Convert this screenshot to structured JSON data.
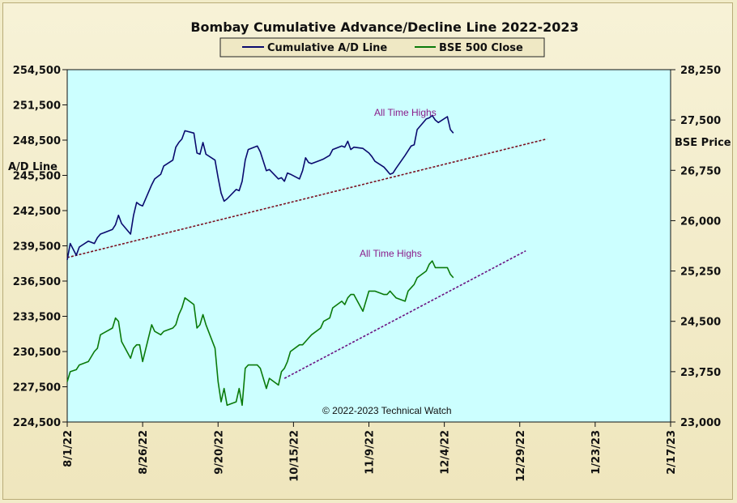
{
  "chart_data": {
    "type": "line",
    "title": "Bombay Cumulative Advance/Decline Line 2022-2023",
    "ylabel_left": "A/D Line",
    "ylabel_right": "BSE Price",
    "copyright": "© 2022-2023  Technical  Watch",
    "annotations": [
      "All Time Highs",
      "All Time Highs"
    ],
    "x_ticks": [
      "8/1/22",
      "8/26/22",
      "9/20/22",
      "10/15/22",
      "11/9/22",
      "12/4/22",
      "12/29/22",
      "1/23/23",
      "2/17/23"
    ],
    "x_range": [
      "2022-08-01",
      "2023-02-17"
    ],
    "y_left_ticks": [
      "254,500",
      "251,500",
      "248,500",
      "245,500",
      "242,500",
      "239,500",
      "236,500",
      "233,500",
      "230,500",
      "227,500",
      "224,500"
    ],
    "y_left_range": [
      224500,
      254500
    ],
    "y_right_ticks": [
      "28,250",
      "27,500",
      "26,750",
      "26,000",
      "25,250",
      "24,500",
      "23,750",
      "23,000"
    ],
    "y_right_range": [
      23000,
      28250
    ],
    "grid": false,
    "legend_position": "top-center",
    "series": [
      {
        "name": "Cumulative A/D Line",
        "axis": "left",
        "color": "#0a0a6e",
        "x": [
          "2022-08-01",
          "2022-08-02",
          "2022-08-04",
          "2022-08-05",
          "2022-08-08",
          "2022-08-10",
          "2022-08-11",
          "2022-08-12",
          "2022-08-16",
          "2022-08-17",
          "2022-08-18",
          "2022-08-19",
          "2022-08-22",
          "2022-08-23",
          "2022-08-24",
          "2022-08-25",
          "2022-08-26",
          "2022-08-29",
          "2022-08-30",
          "2022-09-01",
          "2022-09-02",
          "2022-09-05",
          "2022-09-06",
          "2022-09-07",
          "2022-09-08",
          "2022-09-09",
          "2022-09-12",
          "2022-09-13",
          "2022-09-14",
          "2022-09-15",
          "2022-09-16",
          "2022-09-19",
          "2022-09-20",
          "2022-09-21",
          "2022-09-22",
          "2022-09-23",
          "2022-09-26",
          "2022-09-27",
          "2022-09-28",
          "2022-09-29",
          "2022-09-30",
          "2022-10-03",
          "2022-10-04",
          "2022-10-06",
          "2022-10-07",
          "2022-10-10",
          "2022-10-11",
          "2022-10-12",
          "2022-10-13",
          "2022-10-14",
          "2022-10-17",
          "2022-10-18",
          "2022-10-19",
          "2022-10-20",
          "2022-10-21",
          "2022-10-24",
          "2022-10-25",
          "2022-10-27",
          "2022-10-28",
          "2022-10-31",
          "2022-11-01",
          "2022-11-02",
          "2022-11-03",
          "2022-11-04",
          "2022-11-07",
          "2022-11-09",
          "2022-11-10",
          "2022-11-11",
          "2022-11-14",
          "2022-11-15",
          "2022-11-16",
          "2022-11-17",
          "2022-11-18",
          "2022-11-21",
          "2022-11-22",
          "2022-11-23",
          "2022-11-24",
          "2022-11-25",
          "2022-11-28",
          "2022-11-29",
          "2022-11-30",
          "2022-12-01",
          "2022-12-02",
          "2022-12-05",
          "2022-12-06",
          "2022-12-07"
        ],
        "values": [
          238300,
          239700,
          238700,
          239400,
          239900,
          239700,
          240200,
          240500,
          240900,
          241300,
          242100,
          241400,
          240500,
          242100,
          243200,
          243000,
          242900,
          244700,
          245200,
          245600,
          246300,
          246800,
          247900,
          248300,
          248600,
          249300,
          249100,
          247400,
          247300,
          248300,
          247300,
          246800,
          245300,
          244000,
          243300,
          243500,
          244300,
          244200,
          245000,
          246800,
          247700,
          248000,
          247500,
          245900,
          246000,
          245200,
          245300,
          245000,
          245700,
          245600,
          245200,
          245900,
          247000,
          246600,
          246500,
          246800,
          246900,
          247200,
          247700,
          248000,
          247900,
          248400,
          247700,
          247900,
          247800,
          247400,
          247100,
          246700,
          246200,
          245900,
          245600,
          245700,
          246100,
          247200,
          247600,
          248000,
          248100,
          249400,
          250300,
          250400,
          250600,
          250200,
          250000,
          250500,
          249400,
          249100
        ]
      },
      {
        "name": "BSE 500 Close",
        "axis": "right",
        "color": "#0a7a0a",
        "x": [
          "2022-08-01",
          "2022-08-02",
          "2022-08-04",
          "2022-08-05",
          "2022-08-08",
          "2022-08-10",
          "2022-08-11",
          "2022-08-12",
          "2022-08-16",
          "2022-08-17",
          "2022-08-18",
          "2022-08-19",
          "2022-08-22",
          "2022-08-23",
          "2022-08-24",
          "2022-08-25",
          "2022-08-26",
          "2022-08-29",
          "2022-08-30",
          "2022-09-01",
          "2022-09-02",
          "2022-09-05",
          "2022-09-06",
          "2022-09-07",
          "2022-09-08",
          "2022-09-09",
          "2022-09-12",
          "2022-09-13",
          "2022-09-14",
          "2022-09-15",
          "2022-09-16",
          "2022-09-19",
          "2022-09-20",
          "2022-09-21",
          "2022-09-22",
          "2022-09-23",
          "2022-09-26",
          "2022-09-27",
          "2022-09-28",
          "2022-09-29",
          "2022-09-30",
          "2022-10-03",
          "2022-10-04",
          "2022-10-06",
          "2022-10-07",
          "2022-10-10",
          "2022-10-11",
          "2022-10-12",
          "2022-10-13",
          "2022-10-14",
          "2022-10-17",
          "2022-10-18",
          "2022-10-19",
          "2022-10-20",
          "2022-10-21",
          "2022-10-24",
          "2022-10-25",
          "2022-10-27",
          "2022-10-28",
          "2022-10-31",
          "2022-11-01",
          "2022-11-02",
          "2022-11-03",
          "2022-11-04",
          "2022-11-07",
          "2022-11-09",
          "2022-11-10",
          "2022-11-11",
          "2022-11-14",
          "2022-11-15",
          "2022-11-16",
          "2022-11-17",
          "2022-11-18",
          "2022-11-21",
          "2022-11-22",
          "2022-11-23",
          "2022-11-24",
          "2022-11-25",
          "2022-11-28",
          "2022-11-29",
          "2022-11-30",
          "2022-12-01",
          "2022-12-02",
          "2022-12-05",
          "2022-12-06",
          "2022-12-07"
        ],
        "values": [
          23600,
          23750,
          23780,
          23850,
          23900,
          24050,
          24100,
          24300,
          24400,
          24550,
          24500,
          24200,
          23950,
          24100,
          24150,
          24150,
          23900,
          24450,
          24350,
          24300,
          24350,
          24400,
          24450,
          24600,
          24700,
          24850,
          24750,
          24400,
          24450,
          24600,
          24450,
          24100,
          23600,
          23300,
          23500,
          23250,
          23300,
          23500,
          23250,
          23800,
          23850,
          23850,
          23800,
          23500,
          23650,
          23550,
          23750,
          23800,
          23900,
          24050,
          24150,
          24150,
          24200,
          24250,
          24300,
          24400,
          24500,
          24550,
          24700,
          24800,
          24750,
          24850,
          24900,
          24900,
          24650,
          24950,
          24950,
          24950,
          24900,
          24900,
          24950,
          24900,
          24850,
          24800,
          24950,
          25000,
          25050,
          25150,
          25250,
          25350,
          25400,
          25300,
          25300,
          25300,
          25200,
          25150
        ]
      }
    ],
    "trendlines": [
      {
        "axis": "left",
        "color": "#7a1020",
        "style": "dashed",
        "x": [
          "2022-08-01",
          "2023-01-07"
        ],
        "values": [
          238500,
          248600
        ]
      },
      {
        "axis": "right",
        "color": "#6a1080",
        "style": "dashed",
        "x": [
          "2022-10-12",
          "2022-12-31"
        ],
        "values": [
          23650,
          25550
        ]
      }
    ]
  }
}
